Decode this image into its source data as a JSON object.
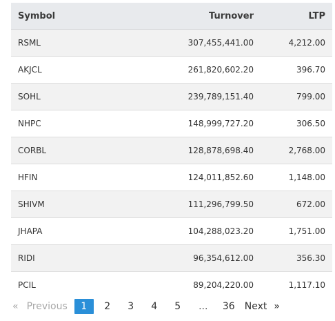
{
  "table": {
    "headers": {
      "symbol": "Symbol",
      "turnover": "Turnover",
      "ltp": "LTP"
    },
    "rows": [
      {
        "symbol": "RSML",
        "turnover": "307,455,441.00",
        "ltp": "4,212.00"
      },
      {
        "symbol": "AKJCL",
        "turnover": "261,820,602.20",
        "ltp": "396.70"
      },
      {
        "symbol": "SOHL",
        "turnover": "239,789,151.40",
        "ltp": "799.00"
      },
      {
        "symbol": "NHPC",
        "turnover": "148,999,727.20",
        "ltp": "306.50"
      },
      {
        "symbol": "CORBL",
        "turnover": "128,878,698.40",
        "ltp": "2,768.00"
      },
      {
        "symbol": "HFIN",
        "turnover": "124,011,852.60",
        "ltp": "1,148.00"
      },
      {
        "symbol": "SHIVM",
        "turnover": "111,296,799.50",
        "ltp": "672.00"
      },
      {
        "symbol": "JHAPA",
        "turnover": "104,288,023.20",
        "ltp": "1,751.00"
      },
      {
        "symbol": "RIDI",
        "turnover": "96,354,612.00",
        "ltp": "356.30"
      },
      {
        "symbol": "PCIL",
        "turnover": "89,204,220.00",
        "ltp": "1,117.10"
      }
    ]
  },
  "pagination": {
    "prev_arrow": "«",
    "prev_label": "Previous",
    "pages": [
      "1",
      "2",
      "3",
      "4",
      "5"
    ],
    "ellipsis": "...",
    "last_page": "36",
    "next_label": "Next",
    "next_arrow": "»",
    "current_page": "1"
  },
  "colors": {
    "header_bg": "#e8eaed",
    "stripe_bg": "#f2f2f2",
    "active_page_bg": "#2a8fd8",
    "disabled_text": "#a8a8a8"
  }
}
